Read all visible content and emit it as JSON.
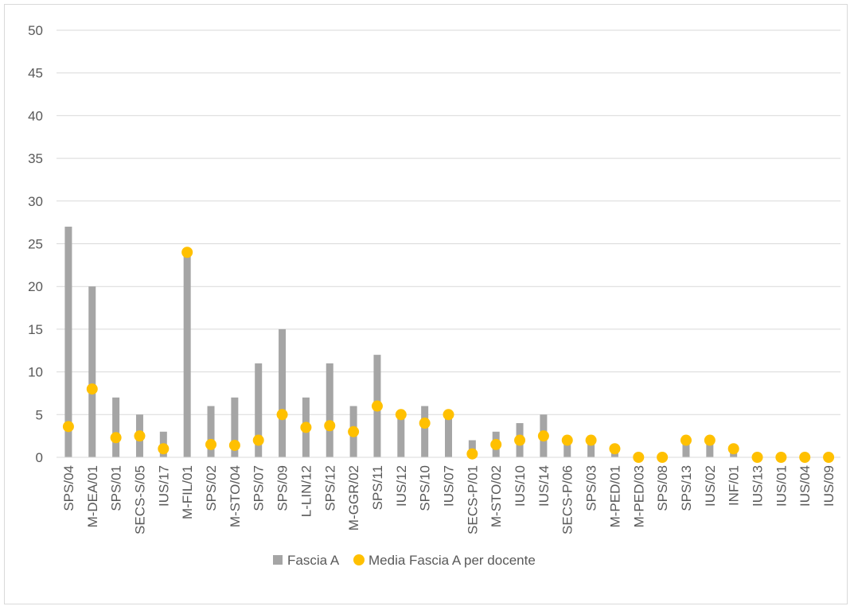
{
  "chart_data": {
    "type": "bar",
    "categories": [
      "SPS/04",
      "M-DEA/01",
      "SPS/01",
      "SECS-S/05",
      "IUS/17",
      "M-FIL/01",
      "SPS/02",
      "M-STO/04",
      "SPS/07",
      "SPS/09",
      "L-LIN/12",
      "SPS/12",
      "M-GGR/02",
      "SPS/11",
      "IUS/12",
      "SPS/10",
      "IUS/07",
      "SECS-P/01",
      "M-STO/02",
      "IUS/10",
      "IUS/14",
      "SECS-P/06",
      "SPS/03",
      "M-PED/01",
      "M-PED/03",
      "SPS/08",
      "SPS/13",
      "IUS/02",
      "INF/01",
      "IUS/13",
      "IUS/01",
      "IUS/04",
      "IUS/09"
    ],
    "series": [
      {
        "name": "Fascia A",
        "kind": "bar",
        "color": "#a5a5a5",
        "values": [
          27,
          20,
          7,
          5,
          3,
          24,
          6,
          7,
          11,
          15,
          7,
          11,
          6,
          12,
          5,
          6,
          5,
          2,
          3,
          4,
          5,
          2,
          2,
          1,
          0,
          0,
          2,
          2,
          1,
          0,
          0,
          0,
          0
        ]
      },
      {
        "name": "Media Fascia A per docente",
        "kind": "scatter",
        "color": "#ffc000",
        "values": [
          3.6,
          8,
          2.3,
          2.5,
          1,
          24,
          1.5,
          1.4,
          2,
          5,
          3.5,
          3.7,
          3,
          6,
          5,
          4,
          5,
          0.4,
          1.5,
          2,
          2.5,
          2,
          2,
          1,
          0,
          0,
          2,
          2,
          1,
          0,
          0,
          0,
          0
        ]
      }
    ],
    "ylim": [
      0,
      50
    ],
    "yticks": [
      0,
      5,
      10,
      15,
      20,
      25,
      30,
      35,
      40,
      45,
      50
    ],
    "grid": true,
    "legend": "bottom"
  }
}
